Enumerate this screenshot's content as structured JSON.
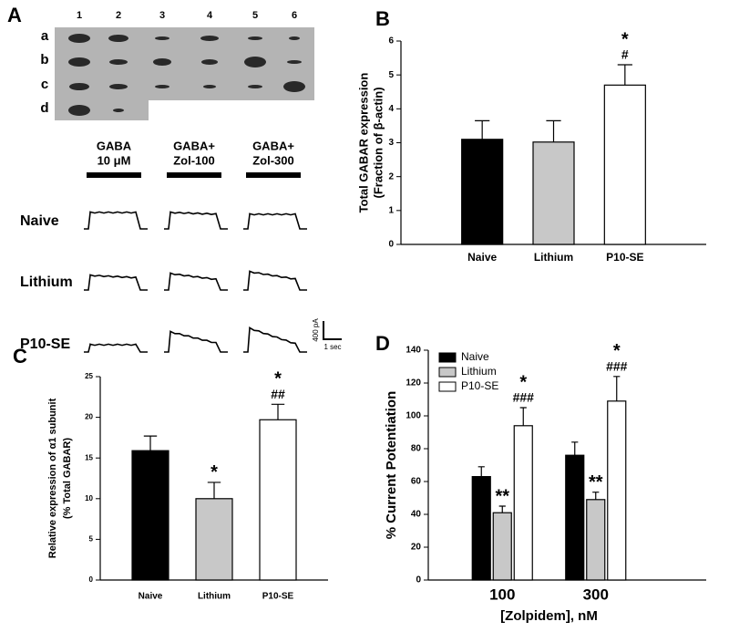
{
  "panel_a": {
    "panel_label": "A",
    "lanes": [
      "1",
      "2",
      "3",
      "4",
      "5",
      "6"
    ],
    "rows": [
      "a",
      "b",
      "c",
      "d"
    ],
    "conditions": [
      [
        "GABA",
        "10 μM"
      ],
      [
        "GABA+",
        "Zol-100"
      ],
      [
        "GABA+",
        "Zol-300"
      ]
    ],
    "groups": [
      "Naive",
      "Lithium",
      "P10-SE"
    ],
    "scale_current": "400 pA",
    "scale_time": "1 sec"
  },
  "chart_data": [
    {
      "type": "bar",
      "panel_label": "B",
      "ylabel": [
        "Total GABAR expression",
        "(Fraction of β-actin)"
      ],
      "categories": [
        "Naive",
        "Lithium",
        "P10-SE"
      ],
      "values": [
        3.1,
        3.02,
        4.7
      ],
      "errors": [
        0.55,
        0.63,
        0.6
      ],
      "colors": [
        "#000000",
        "#c8c8c8",
        "#ffffff"
      ],
      "annotations": [
        null,
        null,
        [
          "*",
          "#"
        ]
      ],
      "ylim": [
        0,
        6
      ],
      "yticks": [
        0,
        1,
        2,
        3,
        4,
        5,
        6
      ]
    },
    {
      "type": "bar",
      "panel_label": "C",
      "ylabel": [
        "Relative expression of α1 subunit",
        "(% Total GABAR)"
      ],
      "categories": [
        "Naive",
        "Lithium",
        "P10-SE"
      ],
      "values": [
        15.9,
        10,
        19.7
      ],
      "errors": [
        1.8,
        2,
        1.9
      ],
      "colors": [
        "#000000",
        "#c8c8c8",
        "#ffffff"
      ],
      "annotations": [
        null,
        [
          "*"
        ],
        [
          "*",
          "##"
        ]
      ],
      "ylim": [
        0,
        25
      ],
      "yticks": [
        0,
        5,
        10,
        15,
        20,
        25
      ]
    },
    {
      "type": "grouped_bar",
      "panel_label": "D",
      "ylabel": "% Current Potentiation",
      "xlabel": "[Zolpidem], nM",
      "categories": [
        "100",
        "300"
      ],
      "series": [
        {
          "name": "Naive",
          "color": "#000000",
          "values": [
            63,
            76
          ],
          "errors": [
            6,
            8
          ],
          "annotations": [
            null,
            null
          ]
        },
        {
          "name": "Lithium",
          "color": "#c8c8c8",
          "values": [
            41,
            49
          ],
          "errors": [
            4,
            4.5
          ],
          "annotations": [
            [
              "**"
            ],
            [
              "**"
            ]
          ]
        },
        {
          "name": "P10-SE",
          "color": "#ffffff",
          "values": [
            94,
            109
          ],
          "errors": [
            11,
            15
          ],
          "annotations": [
            [
              "*",
              "###"
            ],
            [
              "*",
              "###"
            ]
          ]
        }
      ],
      "legend": "upper left",
      "ylim": [
        0,
        140
      ],
      "yticks": [
        0,
        20,
        40,
        60,
        80,
        100,
        120,
        140
      ]
    }
  ]
}
